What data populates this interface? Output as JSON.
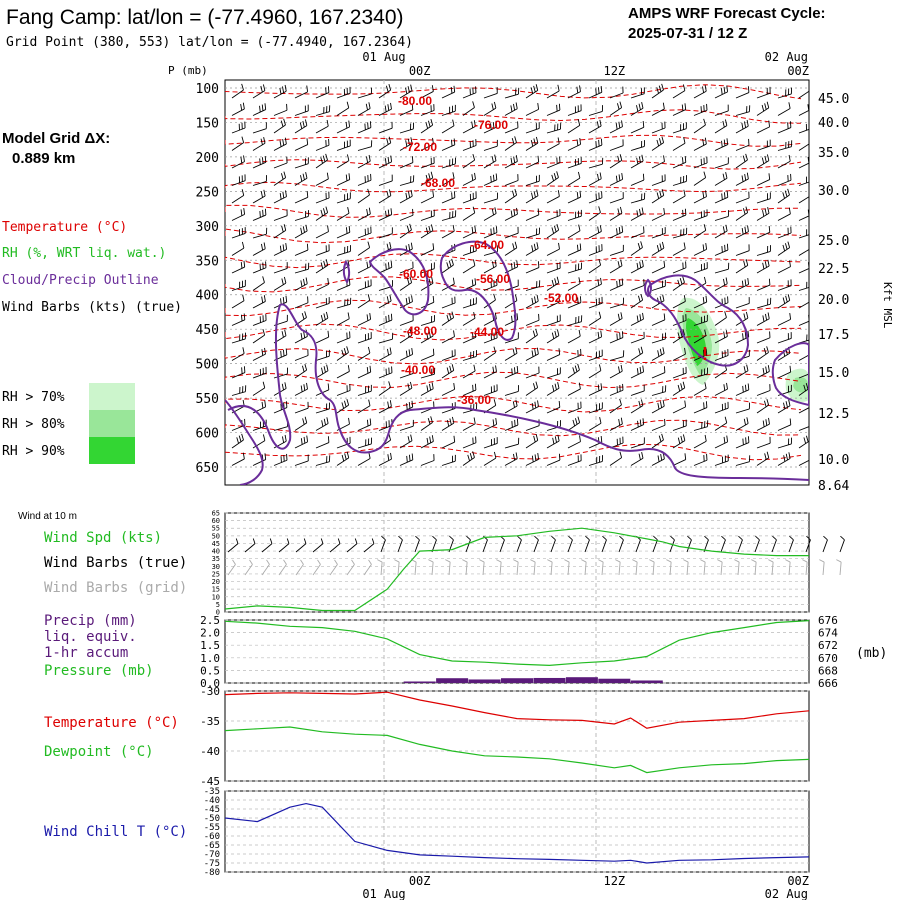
{
  "header": {
    "title": "Fang Camp:  lat/lon = (-77.4960, 167.2340)",
    "subtitle": "Grid Point (380, 553) lat/lon = (-77.4940, 167.2364)",
    "cycle_label": "AMPS WRF Forecast Cycle:",
    "cycle_value": "2025-07-31 / 12  Z"
  },
  "model_grid": {
    "label": "Model Grid ΔX:",
    "value": "0.889 km"
  },
  "legend": {
    "temperature": "Temperature (°C)",
    "rh": "RH (%, WRT liq. wat.)",
    "cloud": "Cloud/Precip Outline",
    "wind_barbs": "Wind Barbs (kts) (true)",
    "rh_levels": [
      {
        "label": "RH > 70%",
        "color": "#ccf5cc"
      },
      {
        "label": "RH > 80%",
        "color": "#99e699"
      },
      {
        "label": "RH > 90%",
        "color": "#33d633"
      }
    ]
  },
  "colors": {
    "temperature": "#dd0000",
    "rh": "#22bb22",
    "cloud": "#6a2d9a",
    "wind": "#000000",
    "grid_wind": "#aaaaaa",
    "wind_chill": "#1a1aaa",
    "precip": "#5a1a7a",
    "pressure": "#22bb22",
    "grid": "#aaaaaa"
  },
  "time_axis": {
    "top_date": "01 Aug",
    "top_date_end": "02 Aug",
    "ticks": [
      {
        "label": "00Z",
        "hour": 12
      },
      {
        "label": "12Z",
        "hour": 24
      },
      {
        "label": "00Z",
        "hour": 36
      }
    ],
    "bottom_date": "01 Aug",
    "bottom_date_end": "02 Aug",
    "range_hours": [
      0,
      36
    ]
  },
  "cross_section": {
    "p_axis_label": "P (mb)",
    "kft_axis_label": "Kft MSL",
    "p_ticks": [
      "100",
      "150",
      "200",
      "250",
      "300",
      "350",
      "400",
      "450",
      "500",
      "550",
      "600",
      "650"
    ],
    "kft_ticks": [
      "45.0",
      "40.0",
      "35.0",
      "30.0",
      "25.0",
      "22.5",
      "20.0",
      "17.5",
      "15.0",
      "12.5",
      "10.0",
      "8.64"
    ],
    "temp_labels": [
      "-80.00",
      "-76.00",
      "-72.00",
      "-68.00",
      "-64.00",
      "-60.00",
      "-56.00",
      "-52.00",
      "-48.00",
      "-44.00",
      "-40.00",
      "-36.00"
    ]
  },
  "panels": {
    "wind10m": {
      "title": "Wind at 10 m",
      "spd_label": "Wind Spd (kts)",
      "barbs_true_label": "Wind Barbs (true)",
      "barbs_grid_label": "Wind Barbs (grid)",
      "y_ticks": [
        "65",
        "60",
        "55",
        "50",
        "45",
        "40",
        "35",
        "30",
        "25",
        "20",
        "15",
        "10",
        "5",
        "0"
      ]
    },
    "precip": {
      "precip_label": "Precip (mm)",
      "liq_label": "liq. equiv.",
      "accum_label": "1-hr accum",
      "pressure_label": "Pressure (mb)",
      "left_ticks": [
        "2.5",
        "2.0",
        "1.5",
        "1.0",
        "0.5",
        "0.0"
      ],
      "right_ticks": [
        "676",
        "674",
        "672",
        "670",
        "668",
        "666"
      ],
      "right_unit": "(mb)"
    },
    "temp": {
      "temp_label": "Temperature (°C)",
      "dew_label": "Dewpoint (°C)",
      "ticks": [
        "-30",
        "-35",
        "-40",
        "-45"
      ]
    },
    "windchill": {
      "label": "Wind Chill T (°C)",
      "ticks": [
        "-35",
        "-40",
        "-45",
        "-50",
        "-55",
        "-60",
        "-65",
        "-70",
        "-75",
        "-80"
      ]
    }
  },
  "chart_data": [
    {
      "type": "line",
      "title": "Wind at 10 m",
      "x_hours": [
        0,
        2,
        4,
        6,
        8,
        10,
        11,
        12,
        14,
        16,
        18,
        20,
        22,
        24,
        26,
        27,
        28,
        30,
        32,
        34,
        36
      ],
      "series": [
        {
          "name": "Wind Spd (kts)",
          "values": [
            2,
            4,
            3,
            1,
            1,
            15,
            28,
            40,
            41,
            49,
            50,
            53,
            55,
            52,
            48,
            46,
            43,
            40,
            38,
            37,
            37
          ]
        }
      ],
      "ylim": [
        0,
        65
      ]
    },
    {
      "type": "line",
      "title": "Precip / Pressure",
      "x_hours": [
        0,
        2,
        4,
        6,
        8,
        10,
        12,
        14,
        16,
        18,
        20,
        22,
        24,
        26,
        28,
        30,
        32,
        34,
        36
      ],
      "series": [
        {
          "name": "Pressure (mb)",
          "values": [
            675.8,
            675.5,
            675.0,
            674.8,
            674.2,
            673.0,
            670.5,
            669.5,
            669.3,
            669.0,
            668.8,
            669.2,
            669.5,
            670.2,
            672.8,
            674.0,
            674.8,
            675.6,
            675.9
          ]
        },
        {
          "name": "Precip (mm)",
          "values": [
            0,
            0,
            0,
            0,
            0,
            0,
            0.06,
            0.19,
            0.14,
            0.19,
            0.2,
            0.23,
            0.17,
            0.1,
            0,
            0,
            0,
            0,
            0
          ]
        }
      ],
      "ylim_pressure": [
        666,
        676
      ],
      "ylim_precip": [
        0,
        2.5
      ]
    },
    {
      "type": "line",
      "title": "Temperature / Dewpoint",
      "x_hours": [
        0,
        2,
        4,
        6,
        8,
        10,
        12,
        14,
        16,
        18,
        20,
        22,
        24,
        25,
        26,
        28,
        30,
        32,
        34,
        36
      ],
      "series": [
        {
          "name": "Temperature (°C)",
          "values": [
            -30.6,
            -30.4,
            -30.3,
            -30.4,
            -30.5,
            -30.2,
            -31.5,
            -32.5,
            -33.6,
            -34.6,
            -34.8,
            -34.9,
            -35.5,
            -34.5,
            -36.2,
            -35.2,
            -34.9,
            -34.6,
            -33.8,
            -33.3
          ]
        },
        {
          "name": "Dewpoint (°C)",
          "values": [
            -36.6,
            -36.3,
            -36.0,
            -36.8,
            -37.2,
            -37.4,
            -38.9,
            -40.0,
            -40.8,
            -41.0,
            -41.3,
            -42.0,
            -42.8,
            -42.4,
            -43.6,
            -42.8,
            -42.3,
            -42.1,
            -41.6,
            -41.4
          ]
        }
      ],
      "ylim": [
        -45,
        -30
      ]
    },
    {
      "type": "line",
      "title": "Wind Chill T",
      "x_hours": [
        0,
        2,
        4,
        5,
        6,
        8,
        10,
        12,
        14,
        16,
        18,
        20,
        22,
        24,
        25,
        26,
        28,
        30,
        32,
        34,
        36
      ],
      "series": [
        {
          "name": "Wind Chill T (°C)",
          "values": [
            -50,
            -52,
            -44,
            -42,
            -44,
            -63,
            -68,
            -70.5,
            -71.2,
            -72,
            -72.6,
            -73,
            -73.5,
            -74,
            -73.5,
            -75,
            -73.5,
            -73.2,
            -72.5,
            -72,
            -71.6
          ]
        }
      ],
      "ylim": [
        -80,
        -35
      ]
    }
  ]
}
